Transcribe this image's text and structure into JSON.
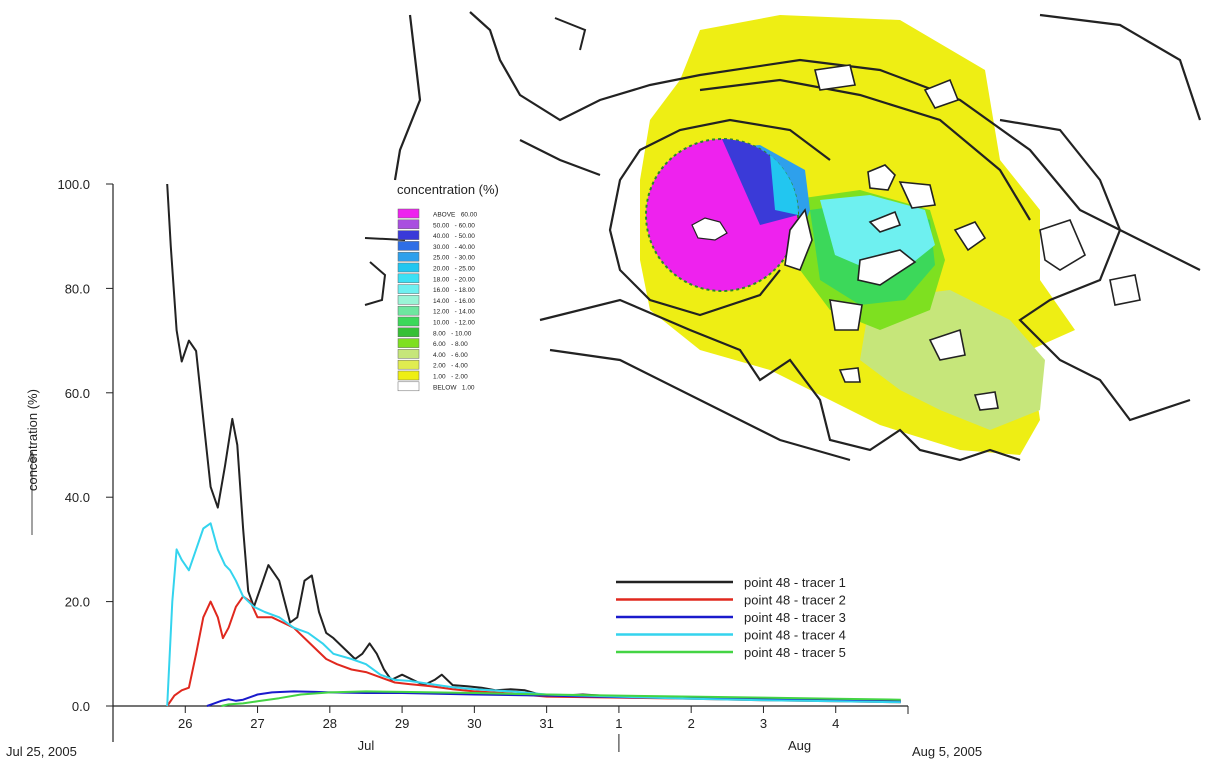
{
  "map": {
    "legend_title": "concentration (%)",
    "legend": [
      {
        "label": "ABOVE   60.00",
        "color": "#ee22ee"
      },
      {
        "label": "50.00   - 60.00",
        "color": "#a94ee0"
      },
      {
        "label": "40.00   - 50.00",
        "color": "#3a3ad8"
      },
      {
        "label": "30.00   - 40.00",
        "color": "#2e6ee6"
      },
      {
        "label": "25.00   - 30.00",
        "color": "#2ea0ec"
      },
      {
        "label": "20.00   - 25.00",
        "color": "#22c6f0"
      },
      {
        "label": "18.00   - 20.00",
        "color": "#3de0f4"
      },
      {
        "label": "16.00   - 18.00",
        "color": "#6ef0f0"
      },
      {
        "label": "14.00   - 16.00",
        "color": "#9af4d6"
      },
      {
        "label": "12.00   - 14.00",
        "color": "#6ee6a0"
      },
      {
        "label": "10.00   - 12.00",
        "color": "#3cd85a"
      },
      {
        "label": "8.00   - 10.00",
        "color": "#36c036"
      },
      {
        "label": "6.00   - 8.00",
        "color": "#7ee020"
      },
      {
        "label": "4.00   - 6.00",
        "color": "#c6e67a"
      },
      {
        "label": "2.00   - 4.00",
        "color": "#e0ec50"
      },
      {
        "label": "1.00   - 2.00",
        "color": "#eeee14"
      },
      {
        "label": "BELOW   1.00",
        "color": "#ffffff"
      }
    ]
  },
  "chart_data": {
    "type": "line",
    "title": "",
    "xlabel": "",
    "ylabel": "concentration (%)",
    "ylim": [
      0,
      100
    ],
    "yticks": [
      "0.0",
      "20.0",
      "40.0",
      "60.0",
      "80.0",
      "100.0"
    ],
    "x_unit": "days",
    "xticks": [
      {
        "label": "26",
        "x": 1
      },
      {
        "label": "27",
        "x": 2
      },
      {
        "label": "28",
        "x": 3
      },
      {
        "label": "29",
        "x": 4
      },
      {
        "label": "30",
        "x": 5
      },
      {
        "label": "31",
        "x": 6
      },
      {
        "label": "1",
        "x": 7
      },
      {
        "label": "2",
        "x": 8
      },
      {
        "label": "3",
        "x": 9
      },
      {
        "label": "4",
        "x": 10
      }
    ],
    "xlim": [
      0,
      11
    ],
    "x_start_label": "Jul 25, 2005",
    "x_end_label": "Aug 5, 2005",
    "month_labels": [
      {
        "label": "Jul",
        "x": 3.5
      },
      {
        "label": "Aug",
        "x": 9.5
      }
    ],
    "legend_position": "right",
    "series": [
      {
        "name": "point 48 - tracer 1",
        "color": "#222222",
        "points": [
          [
            0.75,
            100
          ],
          [
            0.8,
            88
          ],
          [
            0.88,
            72
          ],
          [
            0.95,
            66
          ],
          [
            1.05,
            70
          ],
          [
            1.15,
            68
          ],
          [
            1.25,
            55
          ],
          [
            1.35,
            42
          ],
          [
            1.45,
            38
          ],
          [
            1.55,
            46
          ],
          [
            1.65,
            55
          ],
          [
            1.72,
            50
          ],
          [
            1.8,
            34
          ],
          [
            1.87,
            22
          ],
          [
            1.95,
            19
          ],
          [
            2.05,
            23
          ],
          [
            2.15,
            27
          ],
          [
            2.3,
            24
          ],
          [
            2.45,
            16
          ],
          [
            2.55,
            17
          ],
          [
            2.65,
            24
          ],
          [
            2.75,
            25
          ],
          [
            2.85,
            18
          ],
          [
            2.95,
            14
          ],
          [
            3.05,
            13
          ],
          [
            3.2,
            11
          ],
          [
            3.35,
            9
          ],
          [
            3.45,
            10
          ],
          [
            3.55,
            12
          ],
          [
            3.65,
            10
          ],
          [
            3.75,
            7
          ],
          [
            3.85,
            5
          ],
          [
            4.0,
            6
          ],
          [
            4.15,
            5
          ],
          [
            4.3,
            4
          ],
          [
            4.45,
            5
          ],
          [
            4.55,
            6
          ],
          [
            4.7,
            4
          ],
          [
            4.9,
            3.8
          ],
          [
            5.1,
            3.5
          ],
          [
            5.3,
            3
          ],
          [
            5.5,
            3.2
          ],
          [
            5.7,
            3.0
          ],
          [
            5.9,
            2.2
          ],
          [
            6.2,
            2.0
          ],
          [
            6.5,
            2.2
          ],
          [
            7.0,
            1.8
          ],
          [
            8.0,
            1.5
          ],
          [
            9.0,
            1.2
          ],
          [
            10.0,
            1.0
          ],
          [
            10.9,
            0.8
          ]
        ]
      },
      {
        "name": "point 48 - tracer 2",
        "color": "#e0281e",
        "points": [
          [
            0.75,
            0
          ],
          [
            0.85,
            2
          ],
          [
            0.95,
            3
          ],
          [
            1.05,
            3.5
          ],
          [
            1.15,
            10
          ],
          [
            1.25,
            17
          ],
          [
            1.35,
            20
          ],
          [
            1.45,
            17
          ],
          [
            1.52,
            13
          ],
          [
            1.6,
            15
          ],
          [
            1.7,
            19
          ],
          [
            1.8,
            21
          ],
          [
            1.9,
            20
          ],
          [
            2.0,
            17
          ],
          [
            2.2,
            17
          ],
          [
            2.35,
            16
          ],
          [
            2.5,
            15
          ],
          [
            2.65,
            13
          ],
          [
            2.8,
            11
          ],
          [
            2.95,
            9
          ],
          [
            3.1,
            8
          ],
          [
            3.3,
            7
          ],
          [
            3.5,
            6.5
          ],
          [
            3.7,
            5.5
          ],
          [
            3.9,
            4.5
          ],
          [
            4.1,
            4.2
          ],
          [
            4.4,
            3.8
          ],
          [
            4.7,
            3.2
          ],
          [
            5.0,
            2.8
          ],
          [
            5.5,
            2.4
          ],
          [
            6.0,
            1.8
          ],
          [
            7.0,
            1.6
          ],
          [
            8.0,
            1.4
          ],
          [
            9.0,
            1.1
          ],
          [
            10.0,
            0.9
          ],
          [
            10.9,
            0.7
          ]
        ]
      },
      {
        "name": "point 48 - tracer 3",
        "color": "#1a1acc",
        "points": [
          [
            1.3,
            0
          ],
          [
            1.4,
            0.5
          ],
          [
            1.5,
            1.0
          ],
          [
            1.6,
            1.3
          ],
          [
            1.7,
            1.0
          ],
          [
            1.8,
            1.2
          ],
          [
            2.0,
            2.2
          ],
          [
            2.2,
            2.6
          ],
          [
            2.5,
            2.8
          ],
          [
            2.8,
            2.7
          ],
          [
            3.0,
            2.6
          ],
          [
            3.5,
            2.5
          ],
          [
            4.0,
            2.5
          ],
          [
            5.0,
            2.2
          ],
          [
            6.0,
            2.0
          ],
          [
            7.0,
            1.7
          ],
          [
            8.0,
            1.5
          ],
          [
            9.0,
            1.3
          ],
          [
            10.0,
            1.1
          ],
          [
            10.9,
            0.9
          ]
        ]
      },
      {
        "name": "point 48 - tracer 4",
        "color": "#34d4ee",
        "points": [
          [
            0.75,
            0
          ],
          [
            0.82,
            20
          ],
          [
            0.88,
            30
          ],
          [
            0.95,
            28
          ],
          [
            1.05,
            26
          ],
          [
            1.15,
            30
          ],
          [
            1.25,
            34
          ],
          [
            1.35,
            35
          ],
          [
            1.45,
            30
          ],
          [
            1.55,
            27
          ],
          [
            1.62,
            26
          ],
          [
            1.7,
            24
          ],
          [
            1.8,
            21
          ],
          [
            1.95,
            19
          ],
          [
            2.1,
            18
          ],
          [
            2.3,
            17
          ],
          [
            2.5,
            15
          ],
          [
            2.7,
            14
          ],
          [
            2.9,
            12
          ],
          [
            3.05,
            10
          ],
          [
            3.3,
            9
          ],
          [
            3.5,
            8
          ],
          [
            3.7,
            6
          ],
          [
            3.9,
            5
          ],
          [
            4.1,
            4.8
          ],
          [
            4.4,
            4.2
          ],
          [
            4.7,
            3.6
          ],
          [
            5.0,
            3.2
          ],
          [
            5.5,
            2.8
          ],
          [
            6.0,
            2.2
          ],
          [
            7.0,
            1.8
          ],
          [
            8.0,
            1.4
          ],
          [
            9.0,
            1.1
          ],
          [
            10.0,
            0.9
          ],
          [
            10.9,
            0.7
          ]
        ]
      },
      {
        "name": "point 48 - tracer 5",
        "color": "#44d444",
        "points": [
          [
            1.5,
            0
          ],
          [
            1.6,
            0.3
          ],
          [
            1.8,
            0.5
          ],
          [
            2.0,
            0.9
          ],
          [
            2.3,
            1.5
          ],
          [
            2.6,
            2.2
          ],
          [
            3.0,
            2.6
          ],
          [
            3.5,
            2.8
          ],
          [
            4.0,
            2.7
          ],
          [
            5.0,
            2.5
          ],
          [
            6.0,
            2.2
          ],
          [
            7.0,
            2.0
          ],
          [
            8.0,
            1.8
          ],
          [
            9.0,
            1.6
          ],
          [
            10.0,
            1.4
          ],
          [
            10.9,
            1.2
          ]
        ]
      }
    ]
  }
}
